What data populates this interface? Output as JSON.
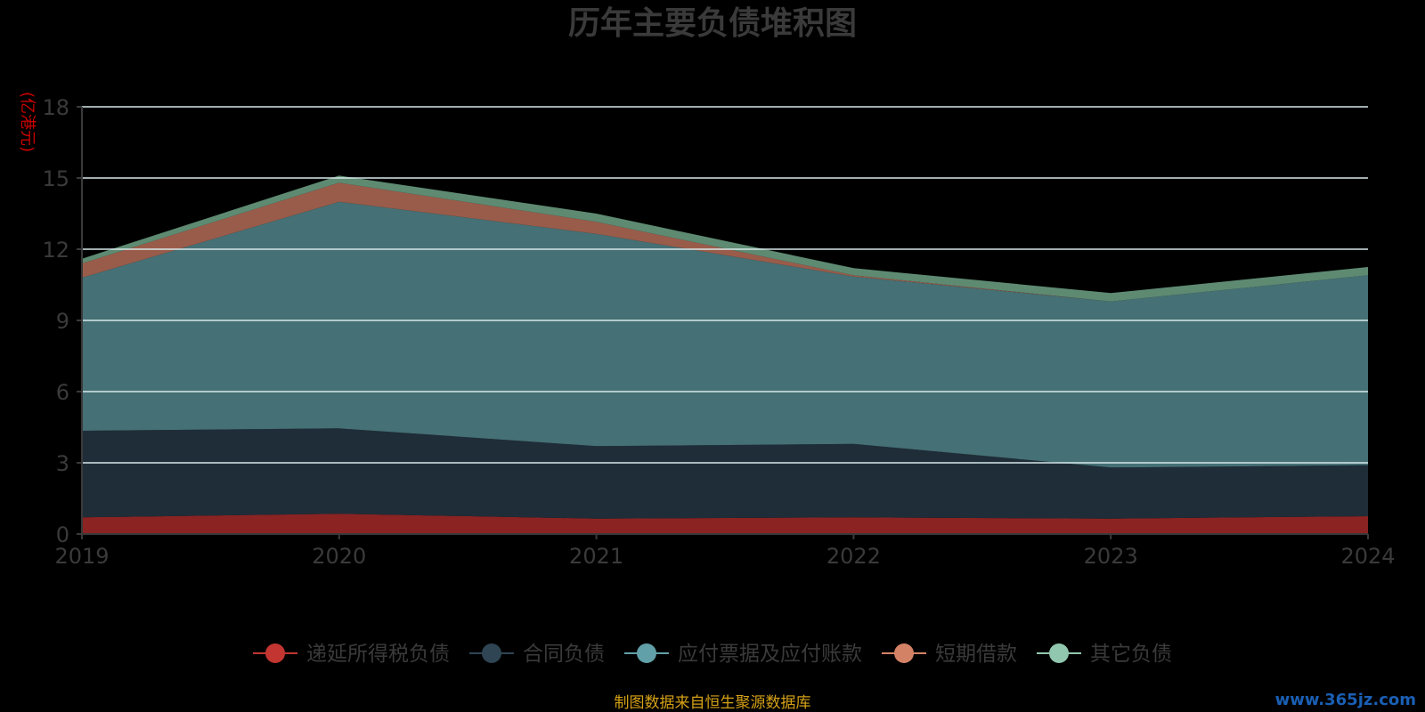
{
  "chart_data": {
    "type": "area",
    "stacked": true,
    "title": "历年主要负债堆积图",
    "ylabel": "(亿港元)",
    "x": [
      "2019",
      "2020",
      "2021",
      "2022",
      "2023",
      "2024"
    ],
    "ylim": [
      0,
      18
    ],
    "yticks": [
      0,
      3,
      6,
      9,
      12,
      15,
      18
    ],
    "grid": true,
    "legend_position": "bottom",
    "series": [
      {
        "name": "递延所得税负债",
        "color": "#8b2323",
        "legend_color": "#c23531",
        "values": [
          0.7,
          0.85,
          0.65,
          0.7,
          0.65,
          0.75
        ]
      },
      {
        "name": "合同负债",
        "color": "#1f2d38",
        "legend_color": "#2f4554",
        "values": [
          3.65,
          3.6,
          3.05,
          3.1,
          2.15,
          2.15
        ]
      },
      {
        "name": "应付票据及应付账款",
        "color": "#457075",
        "legend_color": "#61a0a8",
        "values": [
          6.45,
          9.55,
          8.95,
          7.05,
          7.0,
          8.0
        ]
      },
      {
        "name": "短期借款",
        "color": "#9a5c4a",
        "legend_color": "#d48265",
        "values": [
          0.6,
          0.8,
          0.5,
          0.05,
          0.0,
          0.0
        ]
      },
      {
        "name": "其它负债",
        "color": "#5e8a72",
        "legend_color": "#91c7ae",
        "values": [
          0.2,
          0.3,
          0.35,
          0.3,
          0.35,
          0.35
        ]
      }
    ]
  },
  "source_note": "制图数据来自恒生聚源数据库",
  "watermark": "www.365jz.com"
}
